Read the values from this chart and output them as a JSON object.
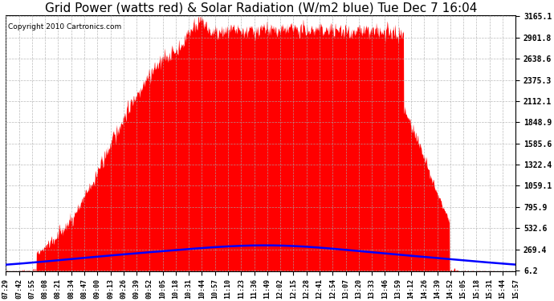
{
  "title": "Grid Power (watts red) & Solar Radiation (W/m2 blue) Tue Dec 7 16:04",
  "copyright_text": "Copyright 2010 Cartronics.com",
  "yticks": [
    6.2,
    269.4,
    532.6,
    795.9,
    1059.1,
    1322.4,
    1585.6,
    1848.9,
    2112.1,
    2375.3,
    2638.6,
    2901.8,
    3165.1
  ],
  "ymax": 3165.1,
  "ymin": 6.2,
  "background_color": "#ffffff",
  "plot_bg_color": "#ffffff",
  "grid_color": "#aaaaaa",
  "red_fill_color": "#ff0000",
  "blue_line_color": "#0000ff",
  "title_fontsize": 11,
  "xtick_labels": [
    "07:29",
    "07:42",
    "07:55",
    "08:08",
    "08:21",
    "08:34",
    "08:47",
    "09:00",
    "09:13",
    "09:26",
    "09:39",
    "09:52",
    "10:05",
    "10:18",
    "10:31",
    "10:44",
    "10:57",
    "11:10",
    "11:23",
    "11:36",
    "11:49",
    "12:02",
    "12:15",
    "12:28",
    "12:41",
    "12:54",
    "13:07",
    "13:20",
    "13:33",
    "13:46",
    "13:59",
    "14:12",
    "14:26",
    "14:39",
    "14:52",
    "15:05",
    "15:18",
    "15:31",
    "15:44",
    "15:57"
  ]
}
